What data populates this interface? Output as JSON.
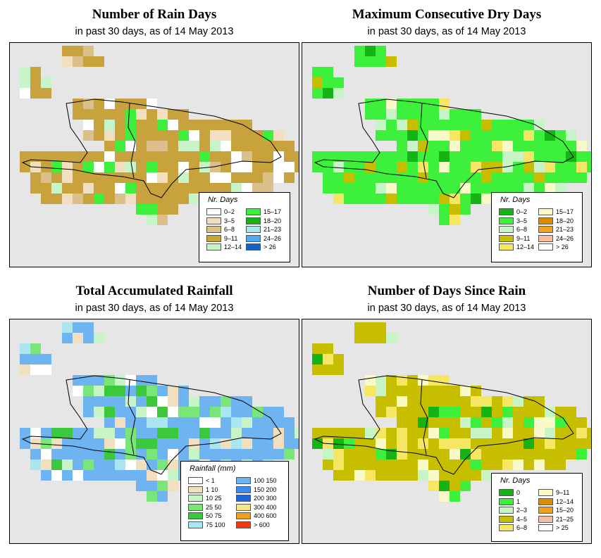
{
  "panels": [
    {
      "id": "rain-days",
      "title": "Number of Rain Days",
      "subtitle": "in past 30 days, as of  14 May 2013",
      "legend_title": "Nr. Days",
      "legend_items": [
        {
          "label": "0–2",
          "color": "#ffffff"
        },
        {
          "label": "3–5",
          "color": "#f2dfc0"
        },
        {
          "label": "6–8",
          "color": "#dcc08c"
        },
        {
          "label": "9–11",
          "color": "#c8a23c"
        },
        {
          "label": "12–14",
          "color": "#c8f5c8"
        },
        {
          "label": "15–17",
          "color": "#3cf03c"
        },
        {
          "label": "18–20",
          "color": "#14b414"
        },
        {
          "label": "21–23",
          "color": "#aae6f0"
        },
        {
          "label": "24–26",
          "color": "#50aaf0"
        },
        {
          "label": "> 26",
          "color": "#1464c8"
        }
      ],
      "dominant_color": "#c8a23c"
    },
    {
      "id": "max-dry-days",
      "title": "Maximum Consecutive Dry Days",
      "subtitle": "in past 30 days, as of  14 May 2013",
      "legend_title": "Nr. Days",
      "legend_items": [
        {
          "label": "0–2",
          "color": "#14b414"
        },
        {
          "label": "3–5",
          "color": "#3cf03c"
        },
        {
          "label": "6–8",
          "color": "#c8f5c8"
        },
        {
          "label": "9–11",
          "color": "#c8be00"
        },
        {
          "label": "12–14",
          "color": "#f5e664"
        },
        {
          "label": "15–17",
          "color": "#fafac8"
        },
        {
          "label": "18–20",
          "color": "#dc8c00"
        },
        {
          "label": "21–23",
          "color": "#f0a01e"
        },
        {
          "label": "24–26",
          "color": "#f5bea0"
        },
        {
          "label": "> 26",
          "color": "#ffffff"
        }
      ],
      "dominant_color": "#3cf03c"
    },
    {
      "id": "total-rainfall",
      "title": "Total Accumulated Rainfall",
      "subtitle": "in past 30 days, as of  14 May 2013",
      "legend_title": "Rainfall (mm)",
      "legend_items": [
        {
          "label": "< 1",
          "color": "#ffffff"
        },
        {
          "label": "1   10",
          "color": "#f2dfc0"
        },
        {
          "label": "10   25",
          "color": "#c8f5c8"
        },
        {
          "label": "25   50",
          "color": "#78e678"
        },
        {
          "label": "50   75",
          "color": "#3cc83c"
        },
        {
          "label": "75   100",
          "color": "#aae6f0"
        },
        {
          "label": "100   150",
          "color": "#6eb4f0"
        },
        {
          "label": "150   200",
          "color": "#3c8cf0"
        },
        {
          "label": "200   300",
          "color": "#1e64dc"
        },
        {
          "label": "300   400",
          "color": "#f5e68c"
        },
        {
          "label": "400   600",
          "color": "#f0a01e"
        },
        {
          "label": "> 600",
          "color": "#f03c14"
        }
      ],
      "dominant_color": "#6eb4f0"
    },
    {
      "id": "days-since-rain",
      "title": "Number of Days Since Rain",
      "subtitle": "in past 30 days, as of  14 May 2013",
      "legend_title": "Nr. Days",
      "legend_items": [
        {
          "label": "0",
          "color": "#14b414"
        },
        {
          "label": "1",
          "color": "#3cf03c"
        },
        {
          "label": "2–3",
          "color": "#c8f5c8"
        },
        {
          "label": "4–5",
          "color": "#c8be00"
        },
        {
          "label": "6–8",
          "color": "#f5e664"
        },
        {
          "label": "9–11",
          "color": "#fafac8"
        },
        {
          "label": "12–14",
          "color": "#dc8c00"
        },
        {
          "label": "15–20",
          "color": "#f0a01e"
        },
        {
          "label": "21–25",
          "color": "#f5bea0"
        },
        {
          "label": "> 25",
          "color": "#ffffff"
        }
      ],
      "dominant_color": "#c8be00"
    }
  ]
}
